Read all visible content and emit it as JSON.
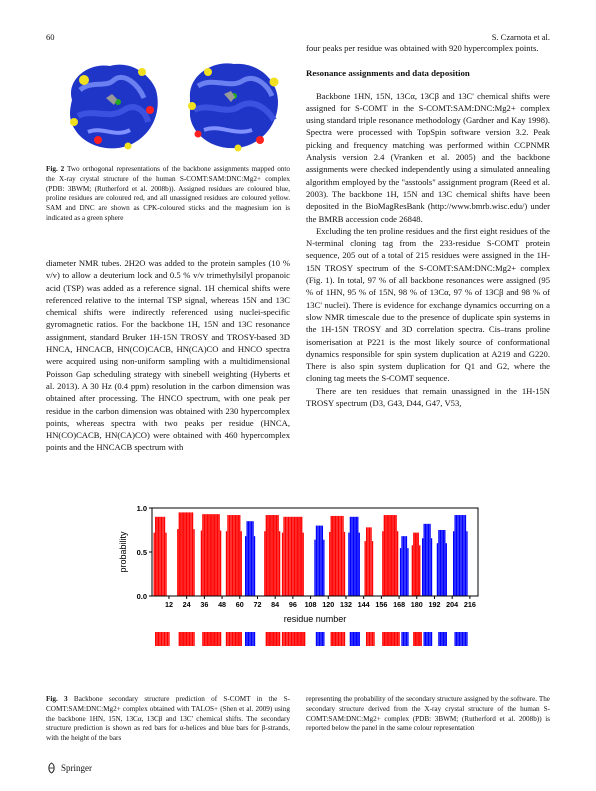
{
  "header": {
    "page_number": "60",
    "running_head": "S. Czarnota et al."
  },
  "figure2": {
    "caption_label": "Fig. 2",
    "caption_text": "Two orthogonal representations of the backbone assignments mapped onto the X-ray crystal structure of the human S-COMT:SAM:DNC:Mg2+ complex (PDB: 3BWM; (Rutherford et al. 2008b)). Assigned residues are coloured blue, proline residues are coloured red, and all unassigned residues are coloured yellow. SAM and DNC are shown as CPK-coloured sticks and the magnesium ion is indicated as a green sphere"
  },
  "left_text": [
    "diameter NMR tubes. 2H2O was added to the protein samples (10 % v/v) to allow a deuterium lock and 0.5 % v/v trimethylsilyl propanoic acid (TSP) was added as a reference signal. 1H chemical shifts were referenced relative to the internal TSP signal, whereas 15N and 13C chemical shifts were indirectly referenced using nuclei-specific gyromagnetic ratios. For the backbone 1H, 15N and 13C resonance assignment, standard Bruker 1H-15N TROSY and TROSY-based 3D HNCA, HNCACB, HN(CO)CACB, HN(CA)CO and HNCO spectra were acquired using non-uniform sampling with a multidimensional Poisson Gap scheduling strategy with sinebell weighting (Hyberts et al. 2013). A 30 Hz (0.4 ppm) resolution in the carbon dimension was obtained after processing. The HNCO spectrum, with one peak per residue in the carbon dimension was obtained with 230 hypercomplex points, whereas spectra with two peaks per residue (HNCA, HN(CO)CACB, HN(CA)CO) were obtained with 460 hypercomplex points and the HNCACB spectrum with"
  ],
  "right_text": {
    "p0": "four peaks per residue was obtained with 920 hypercomplex points.",
    "section_title": "Resonance assignments and data deposition",
    "p1": "Backbone 1HN, 15N, 13Cα, 13Cβ and 13C' chemical shifts were assigned for S-COMT in the S-COMT:SAM:DNC:Mg2+ complex using standard triple resonance methodology (Gardner and Kay 1998). Spectra were processed with TopSpin software version 3.2. Peak picking and frequency matching was performed within CCPNMR Analysis version 2.4 (Vranken et al. 2005) and the backbone assignments were checked independently using a simulated annealing algorithm employed by the \"asstools\" assignment program (Reed et al. 2003). The backbone 1H, 15N and 13C chemical shifts have been deposited in the BioMagResBank (http://www.bmrb.wisc.edu/) under the BMRB accession code 26848.",
    "p2": "Excluding the ten proline residues and the first eight residues of the N-terminal cloning tag from the 233-residue S-COMT protein sequence, 205 out of a total of 215 residues were assigned in the 1H-15N TROSY spectrum of the S-COMT:SAM:DNC:Mg2+ complex (Fig. 1). In total, 97 % of all backbone resonances were assigned (95 % of 1HN, 95 % of 15N, 98 % of 13Cα, 97 % of 13Cβ and 98 % of 13C' nuclei). There is evidence for exchange dynamics occurring on a slow NMR timescale due to the presence of duplicate spin systems in the 1H-15N TROSY and 3D correlation spectra. Cis–trans proline isomerisation at P221 is the most likely source of conformational dynamics responsible for spin system duplication at A219 and G220. There is also spin system duplication for Q1 and G2, where the cloning tag meets the S-COMT sequence.",
    "p3": "There are ten residues that remain unassigned in the 1H-15N TROSY spectrum (D3, G43, D44, G47, V53,"
  },
  "chart_data": {
    "type": "bar",
    "ylabel": "probability",
    "xlabel": "residue number",
    "ylim": [
      0.0,
      1.0
    ],
    "yticks": [
      "1.0",
      "0.5",
      "0.0"
    ],
    "xticks": [
      12,
      24,
      36,
      48,
      60,
      72,
      84,
      96,
      108,
      120,
      132,
      144,
      156,
      168,
      180,
      192,
      204,
      216
    ],
    "xlim": [
      1,
      221
    ],
    "helix_color": "#ff0000",
    "strand_color": "#0000ff",
    "predicted_helices": [
      {
        "start": 2,
        "end": 10,
        "p": 0.9
      },
      {
        "start": 18,
        "end": 29,
        "p": 0.95
      },
      {
        "start": 34,
        "end": 47,
        "p": 0.93
      },
      {
        "start": 51,
        "end": 61,
        "p": 0.92
      },
      {
        "start": 77,
        "end": 87,
        "p": 0.92
      },
      {
        "start": 89,
        "end": 103,
        "p": 0.9
      },
      {
        "start": 121,
        "end": 131,
        "p": 0.91
      },
      {
        "start": 145,
        "end": 150,
        "p": 0.78
      },
      {
        "start": 157,
        "end": 167,
        "p": 0.92
      },
      {
        "start": 177,
        "end": 182,
        "p": 0.72
      }
    ],
    "predicted_strands": [
      {
        "start": 64,
        "end": 70,
        "p": 0.85
      },
      {
        "start": 111,
        "end": 117,
        "p": 0.8
      },
      {
        "start": 134,
        "end": 141,
        "p": 0.9
      },
      {
        "start": 169,
        "end": 174,
        "p": 0.68
      },
      {
        "start": 184,
        "end": 190,
        "p": 0.82
      },
      {
        "start": 194,
        "end": 200,
        "p": 0.75
      },
      {
        "start": 205,
        "end": 214,
        "p": 0.92
      }
    ],
    "xray_helices": [
      {
        "start": 3,
        "end": 12
      },
      {
        "start": 19,
        "end": 29
      },
      {
        "start": 35,
        "end": 47
      },
      {
        "start": 51,
        "end": 61
      },
      {
        "start": 78,
        "end": 87
      },
      {
        "start": 89,
        "end": 104
      },
      {
        "start": 122,
        "end": 131
      },
      {
        "start": 146,
        "end": 151
      },
      {
        "start": 157,
        "end": 168
      },
      {
        "start": 178,
        "end": 183
      }
    ],
    "xray_strands": [
      {
        "start": 64,
        "end": 70
      },
      {
        "start": 112,
        "end": 117
      },
      {
        "start": 135,
        "end": 141
      },
      {
        "start": 170,
        "end": 174
      },
      {
        "start": 185,
        "end": 190
      },
      {
        "start": 195,
        "end": 200
      },
      {
        "start": 206,
        "end": 214
      }
    ]
  },
  "figure3": {
    "caption_label": "Fig. 3",
    "caption_left": "Backbone secondary structure prediction of S-COMT in the S-COMT:SAM:DNC:Mg2+ complex obtained with TALOS+ (Shen et al. 2009) using the backbone 1HN, 15N, 13Cα, 13Cβ and 13C' chemical shifts. The secondary structure prediction is shown as red bars for α-helices and blue bars for β-strands, with the height of the bars",
    "caption_right": "representing the probability of the secondary structure assigned by the software. The secondary structure derived from the X-ray crystal structure of the human S-COMT:SAM:DNC:Mg2+ complex (PDB: 3BWM; (Rutherford et al. 2008b)) is reported below the panel in the same colour representation"
  },
  "footer": {
    "publisher": "Springer"
  }
}
